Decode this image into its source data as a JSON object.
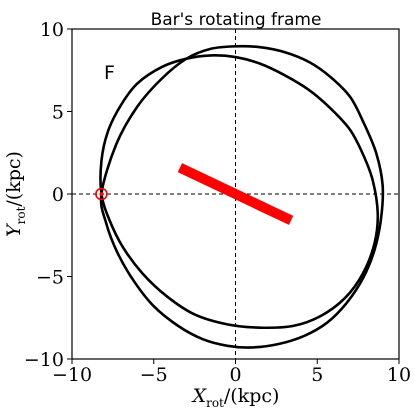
{
  "chart_data": {
    "type": "line",
    "title": "Bar's rotating frame",
    "panel_label": "F",
    "xlabel": {
      "symbol": "X",
      "subscript": "rot",
      "unit": "/(kpc)"
    },
    "ylabel": {
      "symbol": "Y",
      "subscript": "rot",
      "unit": "/(kpc)"
    },
    "xlim": [
      -10,
      10
    ],
    "ylim": [
      -10,
      10
    ],
    "xticks": [
      -10,
      -5,
      0,
      5,
      10
    ],
    "yticks": [
      -10,
      -5,
      0,
      5,
      10
    ],
    "xtick_labels": [
      "−10",
      "−5",
      "0",
      "5",
      "10"
    ],
    "ytick_labels": [
      "−10",
      "−5",
      "0",
      "5",
      "10"
    ],
    "reference_lines": {
      "x": 0,
      "y": 0,
      "style": "dashed"
    },
    "series": [
      {
        "color": "#000000",
        "closed": true,
        "x": [
          -8.2,
          -8.2,
          -7.8,
          -7.0,
          -6.0,
          -4.5,
          -3.0,
          -1.5,
          0.0,
          1.5,
          3.0,
          4.5,
          5.8,
          7.0,
          7.8,
          8.4,
          8.7,
          8.5,
          7.8,
          6.7,
          5.2,
          3.5,
          1.5,
          -0.5,
          -2.5,
          -4.2,
          -5.7,
          -6.9,
          -7.7
        ],
        "y": [
          0.0,
          2.0,
          3.8,
          5.4,
          6.7,
          7.7,
          8.2,
          8.4,
          8.3,
          7.9,
          7.2,
          6.3,
          5.2,
          3.9,
          2.4,
          0.8,
          -1.2,
          -3.0,
          -4.8,
          -6.3,
          -7.4,
          -8.0,
          -8.1,
          -7.9,
          -7.3,
          -6.2,
          -4.8,
          -3.2,
          -1.6
        ]
      },
      {
        "color": "#000000",
        "closed": true,
        "x": [
          -8.2,
          -7.3,
          -6.0,
          -4.5,
          -3.0,
          -1.5,
          0.0,
          1.5,
          3.0,
          4.5,
          5.8,
          7.0,
          7.8,
          8.6,
          9.0,
          8.9,
          8.5,
          7.8,
          6.8,
          5.6,
          4.2,
          2.6,
          1.0,
          -0.5,
          -2.0,
          -3.5,
          -5.0,
          -6.2,
          -7.2,
          -7.9,
          -8.2
        ],
        "y": [
          0.0,
          3.0,
          5.3,
          7.0,
          8.2,
          8.8,
          8.95,
          8.9,
          8.6,
          8.0,
          7.1,
          5.9,
          4.4,
          2.5,
          0.5,
          -1.5,
          -3.4,
          -5.1,
          -6.6,
          -7.8,
          -8.6,
          -9.1,
          -9.3,
          -9.2,
          -8.8,
          -8.0,
          -6.8,
          -5.3,
          -3.6,
          -1.8,
          0.0
        ]
      }
    ],
    "bar": {
      "color": "#ff0000",
      "x": [
        -3.4,
        3.4
      ],
      "y": [
        1.6,
        -1.6
      ]
    },
    "sun_marker": {
      "color": "#ff0000",
      "x": -8.2,
      "y": 0.0
    }
  }
}
